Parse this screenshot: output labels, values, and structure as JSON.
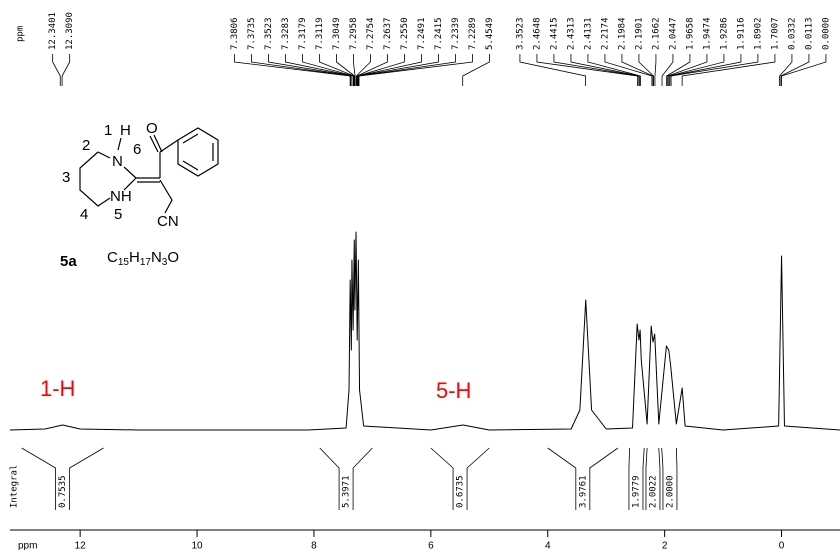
{
  "chart_data": {
    "type": "line",
    "color": "#000000",
    "x": [
      13.2,
      12.6,
      12.3,
      12.0,
      11.0,
      8.1,
      7.45,
      7.4,
      7.38,
      7.36,
      7.35,
      7.33,
      7.31,
      7.3,
      7.28,
      7.26,
      7.24,
      7.22,
      7.15,
      6.0,
      5.45,
      5.0,
      3.6,
      3.45,
      3.35,
      3.25,
      3.0,
      2.55,
      2.47,
      2.44,
      2.42,
      2.4,
      2.3,
      2.23,
      2.2,
      2.17,
      2.1,
      1.97,
      1.93,
      1.9,
      1.8,
      1.7,
      1.65,
      1.0,
      0.05,
      0.0,
      -0.05,
      -1.0
    ],
    "values": [
      0,
      0.5,
      2.5,
      0.5,
      0,
      0,
      1,
      20,
      75,
      40,
      85,
      50,
      95,
      60,
      99,
      45,
      85,
      20,
      2,
      0,
      2.5,
      0,
      0.5,
      10,
      65,
      10,
      0.5,
      1,
      53,
      45,
      50,
      35,
      3,
      52,
      44,
      48,
      3,
      42,
      40,
      33,
      3,
      21,
      2,
      0,
      2,
      87,
      2,
      0
    ],
    "xlim": [
      13.2,
      -1.0
    ],
    "ylim": [
      0,
      100
    ],
    "xticks": [
      12,
      10,
      8,
      6,
      4,
      2,
      0
    ],
    "x_label": "ppm",
    "peak_axis_label": "ppm",
    "peak_labels": [
      12.3401,
      {
        "value": 12.309,
        "label": "12.3090"
      },
      7.3806,
      7.3735,
      7.3523,
      7.3283,
      7.3179,
      7.3119,
      7.3049,
      7.2958,
      7.2754,
      7.2637,
      {
        "value": 7.255,
        "label": "7.2550"
      },
      7.2491,
      7.2415,
      7.2339,
      7.2289,
      5.4549,
      3.3523,
      2.4648,
      2.4415,
      2.4313,
      2.4131,
      2.2174,
      2.1984,
      2.1901,
      2.1662,
      2.0447,
      1.9658,
      1.9474,
      1.9286,
      1.9116,
      1.8902,
      1.7007,
      0.0332,
      0.0113,
      {
        "value": 0,
        "label": "0.0000"
      }
    ],
    "integral_label": "Integral",
    "integrals": [
      {
        "from": 13.0,
        "to": 11.6,
        "value": 0.7535
      },
      {
        "from": 7.9,
        "to": 7.0,
        "value": 5.3971
      },
      {
        "from": 6.0,
        "to": 5.0,
        "value": 0.6735
      },
      {
        "from": 4.0,
        "to": 2.8,
        "value": 3.9761
      },
      {
        "from": 2.6,
        "to": 2.35,
        "value": 1.9779
      },
      {
        "from": 2.3,
        "to": 2.1,
        "value": 2.0022
      },
      {
        "from": 2.05,
        "to": 1.8,
        "value": {
          "value": 2,
          "label": "2.0000"
        }
      }
    ],
    "annotations": [
      "1-H",
      "5-H"
    ],
    "annotation_color": "#ff0000",
    "compound_label": "5a",
    "formula": [
      "C",
      "15",
      "H",
      "17",
      "N",
      "3",
      "O"
    ],
    "structure_labels": [
      "1",
      "H",
      "2",
      "N",
      "6",
      "3",
      "NH",
      "4",
      "5",
      "O",
      "CN"
    ]
  }
}
